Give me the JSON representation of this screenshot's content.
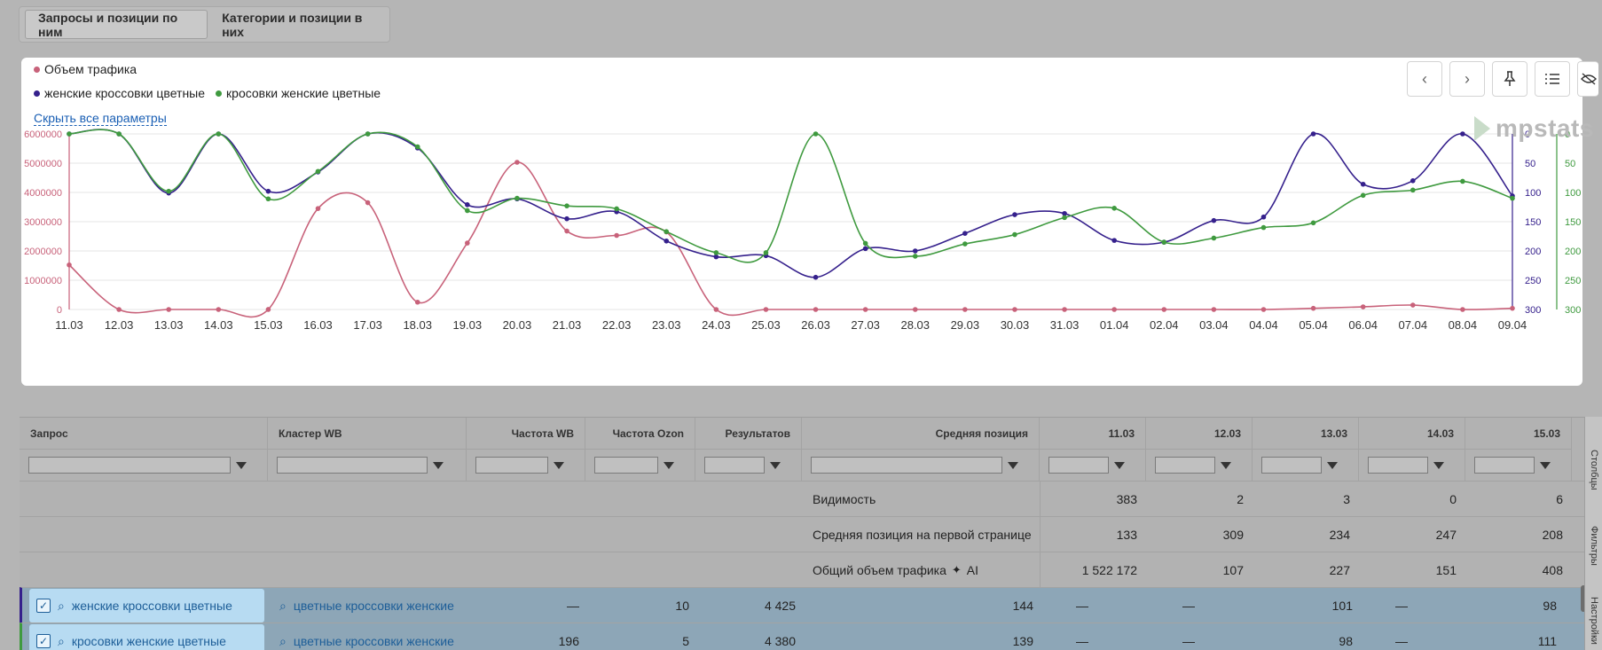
{
  "tabs": [
    "Запросы и позиции по ним",
    "Категории и позиции в них"
  ],
  "legend": {
    "traffic": "Объем трафика",
    "series1": "женские кроссовки цветные",
    "series2": "кросовки женские цветные"
  },
  "hide_params": "Скрыть все параметры",
  "brand": "mpstats",
  "colors": {
    "traffic": "#c8627a",
    "series1": "#35208c",
    "series2": "#3f9a3f"
  },
  "icons": [
    "chevron-left-icon",
    "chevron-right-icon",
    "pin-icon",
    "list-icon",
    "eye-off-icon"
  ],
  "chart_data": {
    "type": "line",
    "categories": [
      "11.03",
      "12.03",
      "13.03",
      "14.03",
      "15.03",
      "16.03",
      "17.03",
      "18.03",
      "19.03",
      "20.03",
      "21.03",
      "22.03",
      "23.03",
      "24.03",
      "25.03",
      "26.03",
      "27.03",
      "28.03",
      "29.03",
      "30.03",
      "31.03",
      "01.04",
      "02.04",
      "03.04",
      "04.04",
      "05.04",
      "06.04",
      "07.04",
      "08.04",
      "09.04"
    ],
    "left_axis": {
      "ticks": [
        "0",
        "1000000",
        "2000000",
        "3000000",
        "4000000",
        "5000000",
        "6000000"
      ],
      "ylim": [
        0,
        6000000
      ]
    },
    "right_axis_1": {
      "ticks": [
        "0",
        "50",
        "100",
        "150",
        "200",
        "250",
        "300"
      ],
      "ylim": [
        0,
        300
      ],
      "inverted": true
    },
    "right_axis_2": {
      "ticks": [
        "0",
        "50",
        "100",
        "150",
        "200",
        "250",
        "300"
      ],
      "ylim": [
        0,
        300
      ],
      "inverted": true
    },
    "series": [
      {
        "name": "Объем трафика",
        "axis": "left",
        "values": [
          1522172,
          107,
          227,
          151,
          408,
          3450000,
          3650000,
          250000,
          2270000,
          5030000,
          2680000,
          2530000,
          2650000,
          0,
          0,
          0,
          0,
          0,
          0,
          0,
          0,
          0,
          0,
          0,
          0,
          40000,
          90000,
          150000,
          0,
          40000
        ]
      },
      {
        "name": "женские кроссовки цветные",
        "axis": "right1",
        "values": [
          0,
          0,
          101,
          0,
          98,
          65,
          0,
          24,
          121,
          111,
          145,
          133,
          183,
          210,
          208,
          245,
          196,
          200,
          170,
          138,
          136,
          182,
          185,
          148,
          142,
          0,
          86,
          80,
          0,
          106
        ]
      },
      {
        "name": "кросовки женские цветные",
        "axis": "right2",
        "values": [
          0,
          0,
          98,
          0,
          111,
          64,
          0,
          22,
          131,
          110,
          123,
          128,
          167,
          203,
          203,
          0,
          187,
          209,
          188,
          172,
          143,
          127,
          185,
          178,
          160,
          152,
          105,
          96,
          81,
          110
        ]
      }
    ]
  },
  "table": {
    "headers": {
      "query": "Запрос",
      "cluster": "Кластер WB",
      "freq_wb": "Частота WB",
      "freq_ozon": "Частота Ozon",
      "results": "Результатов",
      "avg_pos": "Средняя позиция",
      "d1": "11.03",
      "d2": "12.03",
      "d3": "13.03",
      "d4": "14.03",
      "d5": "15.03"
    },
    "summary": [
      {
        "label": "Видимость",
        "values": [
          "383",
          "2",
          "3",
          "0",
          "6"
        ]
      },
      {
        "label": "Средняя позиция на первой странице",
        "values": [
          "133",
          "309",
          "234",
          "247",
          "208"
        ]
      },
      {
        "label": "Общий объем трафика",
        "suffix": "AI",
        "values": [
          "1 522 172",
          "107",
          "227",
          "151",
          "408"
        ]
      }
    ],
    "rows": [
      {
        "query": "женские кроссовки цветные",
        "cluster": "цветные кроссовки женские",
        "freq_wb": "—",
        "freq_ozon": "10",
        "results": "4 425",
        "avg_pos": "144",
        "days": [
          "—",
          "—",
          "101",
          "—",
          "98"
        ]
      },
      {
        "query": "кросовки женские цветные",
        "cluster": "цветные кроссовки женские",
        "freq_wb": "196",
        "freq_ozon": "5",
        "results": "4 380",
        "avg_pos": "139",
        "days": [
          "—",
          "—",
          "98",
          "—",
          "111"
        ]
      }
    ]
  },
  "side_tabs": [
    "Столбцы",
    "Фильтры",
    "Настройки"
  ]
}
